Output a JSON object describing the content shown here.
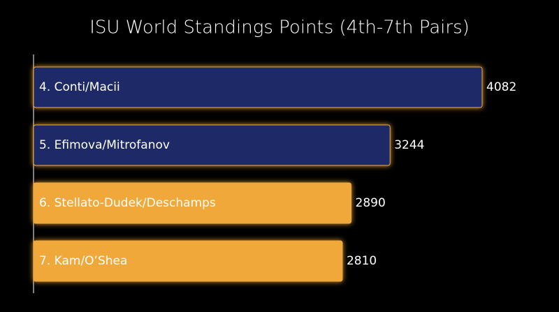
{
  "chart_data": {
    "type": "hbar",
    "title": "ISU World Standings Points (4th-7th Pairs)",
    "categories": [
      "4. Conti/Macii",
      "5. Efimova/Mitrofanov",
      "6. Stellato-Dudek/Deschamps",
      "7. Kam/O’Shea"
    ],
    "values": [
      4082,
      3244,
      2890,
      2810
    ],
    "colors": [
      "#1e2a68",
      "#1e2a68",
      "#f0a83a",
      "#f0a83a"
    ]
  }
}
